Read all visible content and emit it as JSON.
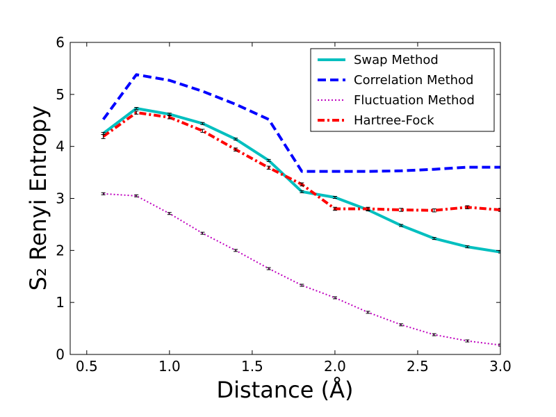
{
  "chart_data": {
    "type": "line",
    "xlabel": "Distance (Å)",
    "ylabel": "S₂ Renyi Entropy",
    "xlim": [
      0.4,
      3.0
    ],
    "ylim": [
      0,
      6
    ],
    "xticks": [
      "0.5",
      "1.0",
      "1.5",
      "2.0",
      "2.5",
      "3.0"
    ],
    "yticks": [
      "0",
      "1",
      "2",
      "3",
      "4",
      "5",
      "6"
    ],
    "legend_position": "top-right",
    "grid": false,
    "series": [
      {
        "name": "Swap Method",
        "color": "#00BFBF",
        "style": "solid",
        "x": [
          0.6,
          0.8,
          1.0,
          1.2,
          1.4,
          1.6,
          1.8,
          2.0,
          2.2,
          2.4,
          2.6,
          2.8,
          3.0
        ],
        "y": [
          4.25,
          4.73,
          4.62,
          4.44,
          4.14,
          3.73,
          3.13,
          3.02,
          2.78,
          2.48,
          2.23,
          2.07,
          1.97
        ],
        "yerr": [
          0.02,
          0.02,
          0.02,
          0.02,
          0.02,
          0.02,
          0.02,
          0.02,
          0.02,
          0.02,
          0.02,
          0.02,
          0.02
        ]
      },
      {
        "name": "Correlation Method",
        "color": "#0000FF",
        "style": "dashed",
        "x": [
          0.6,
          0.8,
          1.0,
          1.2,
          1.4,
          1.6,
          1.8,
          2.0,
          2.2,
          2.4,
          2.6,
          2.8,
          3.0
        ],
        "y": [
          4.52,
          5.38,
          5.27,
          5.06,
          4.81,
          4.52,
          3.52,
          3.52,
          3.52,
          3.53,
          3.56,
          3.6,
          3.6
        ]
      },
      {
        "name": "Fluctuation Method",
        "color": "#BF00BF",
        "style": "dotted",
        "x": [
          0.6,
          0.8,
          1.0,
          1.2,
          1.4,
          1.6,
          1.8,
          2.0,
          2.2,
          2.4,
          2.6,
          2.8,
          3.0
        ],
        "y": [
          3.09,
          3.05,
          2.71,
          2.33,
          2.0,
          1.65,
          1.33,
          1.09,
          0.81,
          0.57,
          0.38,
          0.26,
          0.18
        ],
        "yerr": [
          0.02,
          0.02,
          0.02,
          0.02,
          0.02,
          0.02,
          0.02,
          0.02,
          0.02,
          0.02,
          0.02,
          0.02,
          0.02
        ]
      },
      {
        "name": "Hartree-Fock",
        "color": "#FF0000",
        "style": "dashdot",
        "x": [
          0.6,
          0.8,
          1.0,
          1.2,
          1.4,
          1.6,
          1.8,
          2.0,
          2.2,
          2.4,
          2.6,
          2.8,
          3.0
        ],
        "y": [
          4.19,
          4.65,
          4.56,
          4.3,
          3.94,
          3.59,
          3.27,
          2.8,
          2.8,
          2.78,
          2.77,
          2.83,
          2.78
        ],
        "yerr": [
          0.04,
          0.03,
          0.03,
          0.03,
          0.03,
          0.03,
          0.03,
          0.03,
          0.03,
          0.03,
          0.03,
          0.03,
          0.03
        ]
      }
    ]
  }
}
